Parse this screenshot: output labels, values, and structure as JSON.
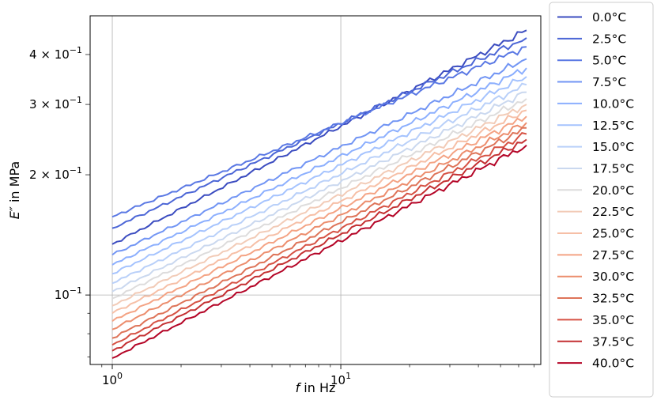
{
  "chart_data": {
    "type": "line",
    "title": "",
    "xlabel_italic": "f",
    "xlabel_rest": " in Hz",
    "ylabel_italic": "E″",
    "ylabel_rest": " in MPa",
    "xscale": "log",
    "yscale": "log",
    "xlim": [
      0.8,
      75
    ],
    "ylim": [
      0.067,
      0.5
    ],
    "grid": "major",
    "legend_position": "outside-right",
    "x_ticks": [
      {
        "value": 1,
        "base": "10",
        "exp": "0"
      },
      {
        "value": 10,
        "base": "10",
        "exp": "1"
      }
    ],
    "y_ticks": [
      {
        "value": 0.1,
        "base": "10",
        "exp": "−1"
      },
      {
        "value": 0.2,
        "mant": "2 × ",
        "base": "10",
        "exp": "−1"
      },
      {
        "value": 0.3,
        "mant": "3 × ",
        "base": "10",
        "exp": "−1"
      },
      {
        "value": 0.4,
        "mant": "4 × ",
        "base": "10",
        "exp": "−1"
      }
    ],
    "x_range": [
      1,
      65
    ],
    "series": [
      {
        "name": "0.0°C",
        "color": "#3b4cc0",
        "y_start": 0.134,
        "y_end": 0.46
      },
      {
        "name": "2.5°C",
        "color": "#4c66d6",
        "y_start": 0.147,
        "y_end": 0.44
      },
      {
        "name": "5.0°C",
        "color": "#5a78e4",
        "y_start": 0.157,
        "y_end": 0.418
      },
      {
        "name": "7.5°C",
        "color": "#7295f4",
        "y_start": 0.126,
        "y_end": 0.39
      },
      {
        "name": "10.0°C",
        "color": "#8caffe",
        "y_start": 0.119,
        "y_end": 0.37
      },
      {
        "name": "12.5°C",
        "color": "#a5c3fe",
        "y_start": 0.113,
        "y_end": 0.352
      },
      {
        "name": "15.0°C",
        "color": "#b9d0f9",
        "y_start": 0.107,
        "y_end": 0.336
      },
      {
        "name": "17.5°C",
        "color": "#cad8ef",
        "y_start": 0.102,
        "y_end": 0.322
      },
      {
        "name": "20.0°C",
        "color": "#dddcdc",
        "y_start": 0.098,
        "y_end": 0.31
      },
      {
        "name": "22.5°C",
        "color": "#f2cbb7",
        "y_start": 0.094,
        "y_end": 0.3
      },
      {
        "name": "25.0°C",
        "color": "#f6bfa6",
        "y_start": 0.09,
        "y_end": 0.29
      },
      {
        "name": "27.5°C",
        "color": "#f4a384",
        "y_start": 0.086,
        "y_end": 0.28
      },
      {
        "name": "30.0°C",
        "color": "#ec8d6d",
        "y_start": 0.082,
        "y_end": 0.27
      },
      {
        "name": "32.5°C",
        "color": "#de7459",
        "y_start": 0.078,
        "y_end": 0.262
      },
      {
        "name": "35.0°C",
        "color": "#d65244",
        "y_start": 0.075,
        "y_end": 0.253
      },
      {
        "name": "37.5°C",
        "color": "#c43032",
        "y_start": 0.0725,
        "y_end": 0.245
      },
      {
        "name": "40.0°C",
        "color": "#b40426",
        "y_start": 0.0695,
        "y_end": 0.237
      }
    ]
  }
}
